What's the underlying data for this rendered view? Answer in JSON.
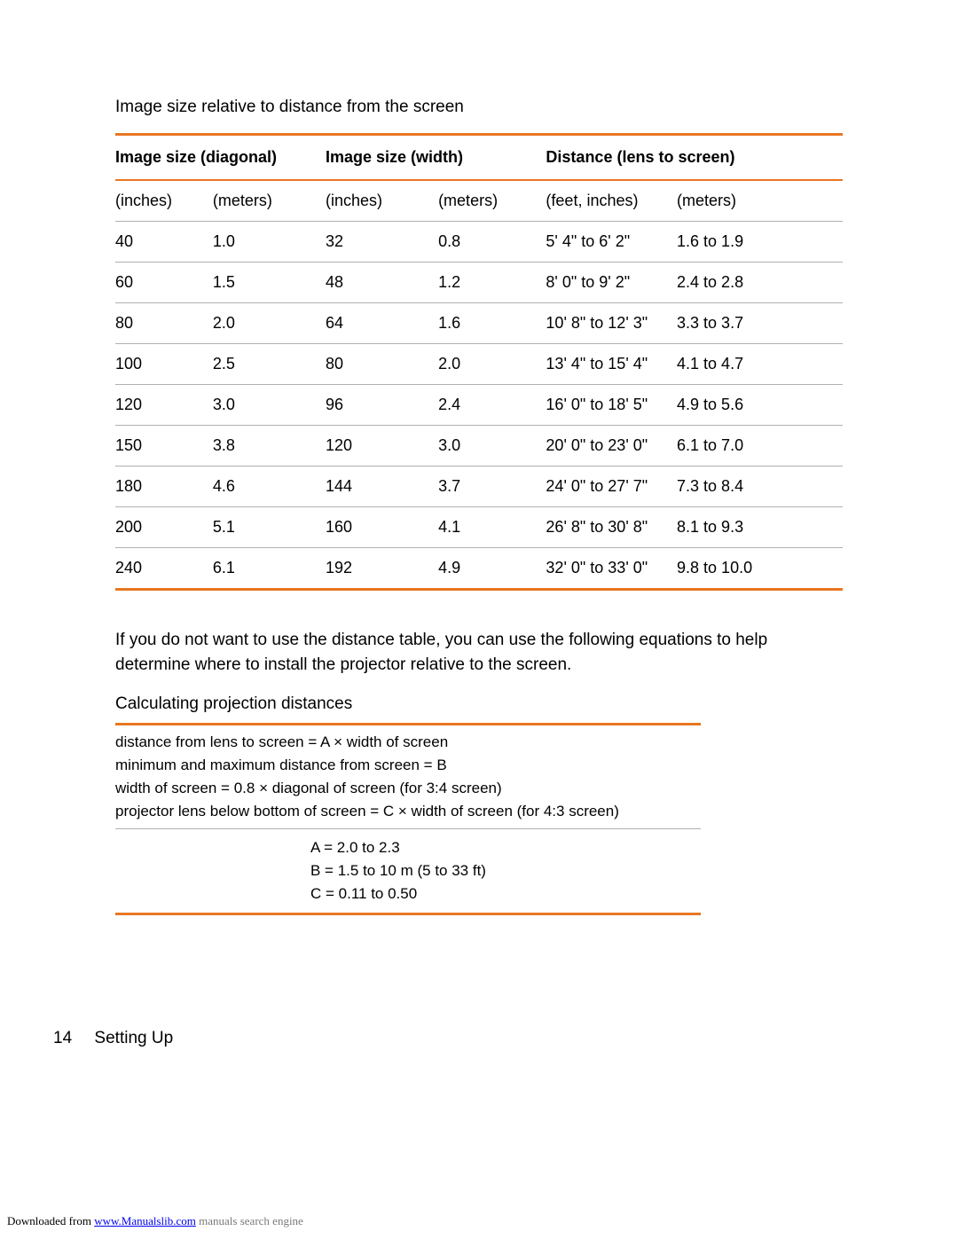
{
  "accent_color": "#e87722",
  "rule_gray": "#b0b0b0",
  "text_color": "#000000",
  "background_color": "#ffffff",
  "table_title": "Image size relative to distance from the screen",
  "columns": {
    "group_headers": [
      "Image size (diagonal)",
      "Image size (width)",
      "Distance (lens to screen)"
    ],
    "sub_headers": [
      "(inches)",
      "(meters)",
      "(inches)",
      "(meters)",
      "(feet, inches)",
      "(meters)"
    ]
  },
  "rows": [
    {
      "diag_in": "40",
      "diag_m": "1.0",
      "wid_in": "32",
      "wid_m": "0.8",
      "dist_ft": "5' 4\" to 6' 2\"",
      "dist_m": "1.6 to 1.9"
    },
    {
      "diag_in": "60",
      "diag_m": "1.5",
      "wid_in": "48",
      "wid_m": "1.2",
      "dist_ft": "8' 0\" to 9' 2\"",
      "dist_m": "2.4 to 2.8"
    },
    {
      "diag_in": "80",
      "diag_m": "2.0",
      "wid_in": "64",
      "wid_m": "1.6",
      "dist_ft": "10' 8\" to 12' 3\"",
      "dist_m": "3.3 to 3.7"
    },
    {
      "diag_in": "100",
      "diag_m": "2.5",
      "wid_in": "80",
      "wid_m": "2.0",
      "dist_ft": "13' 4\" to 15' 4\"",
      "dist_m": "4.1 to 4.7"
    },
    {
      "diag_in": "120",
      "diag_m": "3.0",
      "wid_in": "96",
      "wid_m": "2.4",
      "dist_ft": "16' 0\" to 18' 5\"",
      "dist_m": "4.9 to 5.6"
    },
    {
      "diag_in": "150",
      "diag_m": "3.8",
      "wid_in": "120",
      "wid_m": "3.0",
      "dist_ft": "20' 0\" to 23' 0\"",
      "dist_m": "6.1 to 7.0"
    },
    {
      "diag_in": "180",
      "diag_m": "4.6",
      "wid_in": "144",
      "wid_m": "3.7",
      "dist_ft": "24' 0\" to 27' 7\"",
      "dist_m": "7.3 to 8.4"
    },
    {
      "diag_in": "200",
      "diag_m": "5.1",
      "wid_in": "160",
      "wid_m": "4.1",
      "dist_ft": "26' 8\" to 30' 8\"",
      "dist_m": "8.1 to 9.3"
    },
    {
      "diag_in": "240",
      "diag_m": "6.1",
      "wid_in": "192",
      "wid_m": "4.9",
      "dist_ft": "32' 0\" to 33' 0\"",
      "dist_m": "9.8 to 10.0"
    }
  ],
  "paragraph": "If you do not want to use the distance table, you can use the following equations to help determine where to install the projector relative to the screen.",
  "calc": {
    "title": "Calculating projection distances",
    "lines": [
      "distance from lens to screen = A × width of screen",
      "minimum and maximum distance from screen = B",
      "width of screen = 0.8 × diagonal of screen (for 3:4 screen)",
      "projector lens below bottom of screen = C × width of screen (for 4:3 screen)"
    ],
    "values": [
      "A = 2.0 to 2.3",
      "B = 1.5 to 10 m (5 to 33 ft)",
      "C = 0.11 to 0.50"
    ]
  },
  "page_footer": {
    "number": "14",
    "section": "Setting Up"
  },
  "download_footer": {
    "prefix": "Downloaded from ",
    "link_text": "www.Manualslib.com",
    "suffix": " manuals search engine"
  }
}
